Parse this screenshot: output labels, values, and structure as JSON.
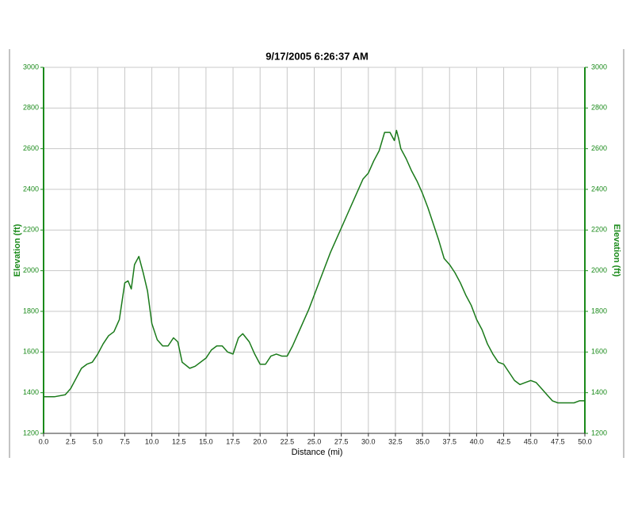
{
  "chart_data": {
    "type": "line",
    "title": "9/17/2005 6:26:37 AM",
    "xlabel": "Distance (mi)",
    "ylabel": "Elevation (ft)",
    "y2label": "Elevation (ft)",
    "x": [
      0,
      1,
      2,
      2.5,
      3,
      3.5,
      4,
      4.5,
      5,
      5.5,
      6,
      6.5,
      7,
      7.5,
      7.8,
      8.1,
      8.4,
      8.8,
      9.2,
      9.6,
      10,
      10.5,
      11,
      11.5,
      12,
      12.4,
      12.8,
      13.5,
      14,
      15,
      15.5,
      16,
      16.5,
      17,
      17.5,
      18,
      18.4,
      19,
      19.5,
      20,
      20.5,
      21,
      21.5,
      22,
      22.5,
      23,
      23.5,
      24,
      24.5,
      25,
      25.5,
      26,
      26.5,
      27,
      27.5,
      28,
      28.5,
      29,
      29.5,
      30,
      30.5,
      31,
      31.5,
      32,
      32.4,
      32.6,
      32.8,
      33,
      33.5,
      34,
      34.5,
      35,
      35.5,
      36,
      36.5,
      37,
      37.5,
      38,
      38.5,
      39,
      39.5,
      40,
      40.5,
      41,
      41.5,
      42,
      42.5,
      43,
      43.5,
      44,
      44.5,
      45,
      45.5,
      46,
      46.5,
      47,
      47.5,
      48,
      48.5,
      49,
      49.5,
      50
    ],
    "series": [
      {
        "name": "Elevation",
        "color": "#1a7a1a",
        "values": [
          1380,
          1380,
          1390,
          1420,
          1470,
          1520,
          1540,
          1550,
          1590,
          1640,
          1680,
          1700,
          1760,
          1940,
          1950,
          1910,
          2030,
          2070,
          1990,
          1900,
          1740,
          1660,
          1630,
          1630,
          1670,
          1650,
          1550,
          1520,
          1530,
          1570,
          1610,
          1630,
          1630,
          1600,
          1590,
          1670,
          1690,
          1650,
          1590,
          1540,
          1540,
          1580,
          1590,
          1580,
          1580,
          1630,
          1690,
          1750,
          1810,
          1880,
          1950,
          2020,
          2090,
          2150,
          2210,
          2270,
          2330,
          2390,
          2450,
          2480,
          2540,
          2590,
          2680,
          2680,
          2640,
          2690,
          2650,
          2600,
          2550,
          2490,
          2440,
          2380,
          2310,
          2230,
          2150,
          2060,
          2030,
          1990,
          1940,
          1880,
          1830,
          1760,
          1710,
          1640,
          1590,
          1550,
          1540,
          1500,
          1460,
          1440,
          1450,
          1460,
          1450,
          1420,
          1390,
          1360,
          1350,
          1350,
          1350,
          1350,
          1360,
          1360
        ]
      }
    ],
    "xlim": [
      0,
      50
    ],
    "xticks": [
      {
        "value": 0,
        "label": "0.0"
      },
      2.5,
      {
        "value": 5,
        "label": "5.0"
      },
      7.5,
      {
        "value": 10,
        "label": "10.0"
      },
      12.5,
      {
        "value": 15,
        "label": "15.0"
      },
      17.5,
      {
        "value": 20,
        "label": "20.0"
      },
      22.5,
      {
        "value": 25,
        "label": "25.0"
      },
      27.5,
      {
        "value": 30,
        "label": "30.0"
      },
      32.5,
      {
        "value": 35,
        "label": "35.0"
      },
      37.5,
      {
        "value": 40,
        "label": "40.0"
      },
      42.5,
      {
        "value": 45,
        "label": "45.0"
      },
      47.5,
      {
        "value": 50,
        "label": "50.0"
      }
    ],
    "ylim": [
      1200,
      3000
    ],
    "yticks": [
      1200,
      1400,
      1600,
      1800,
      2000,
      2200,
      2400,
      2600,
      2800,
      3000
    ],
    "y2lim": [
      1200,
      3000
    ],
    "y2ticks": [
      1200,
      1400,
      1600,
      1800,
      2000,
      2200,
      2400,
      2600,
      2800,
      3000
    ],
    "grid": true,
    "axis_color": "#1a8a1a"
  }
}
